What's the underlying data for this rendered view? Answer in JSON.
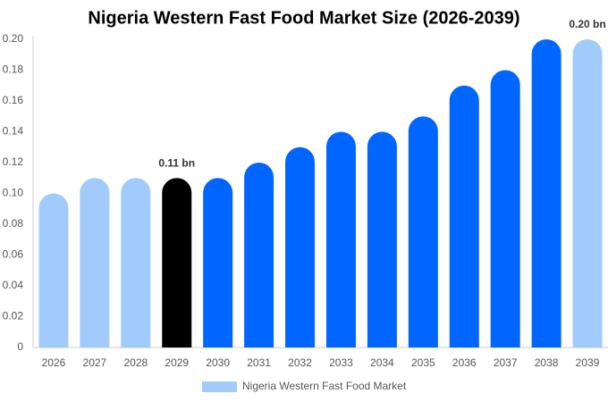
{
  "chart_data": {
    "type": "bar",
    "title": "Nigeria Western Fast Food Market Size (2026-2039)",
    "categories": [
      "2026",
      "2027",
      "2028",
      "2029",
      "2030",
      "2031",
      "2032",
      "2033",
      "2034",
      "2035",
      "2036",
      "2037",
      "2038",
      "2039"
    ],
    "series": [
      {
        "name": "Nigeria Western Fast Food Market",
        "color": "#a0cbfa",
        "values": [
          0.1,
          0.11,
          0.11,
          0.11,
          0.11,
          0.12,
          0.13,
          0.14,
          0.14,
          0.15,
          0.17,
          0.18,
          0.2,
          0.2
        ],
        "colors": [
          "#a0cbfa",
          "#a0cbfa",
          "#a0cbfa",
          "#000000",
          "#0066ff",
          "#0066ff",
          "#0066ff",
          "#0066ff",
          "#0066ff",
          "#0066ff",
          "#0066ff",
          "#0066ff",
          "#0066ff",
          "#a0cbfa"
        ],
        "value_labels": [
          null,
          null,
          null,
          "0.11 bn",
          null,
          null,
          null,
          null,
          null,
          null,
          null,
          null,
          null,
          "0.20 bn"
        ]
      }
    ],
    "ylim": [
      0,
      0.2
    ],
    "yticks": [
      0,
      0.02,
      0.04,
      0.06,
      0.08,
      {
        "value": 0.1,
        "label": "0.10"
      },
      0.12,
      0.14,
      0.16,
      0.18,
      {
        "value": 0.2,
        "label": "0.20"
      }
    ],
    "grid": false,
    "legend": "bottom"
  }
}
